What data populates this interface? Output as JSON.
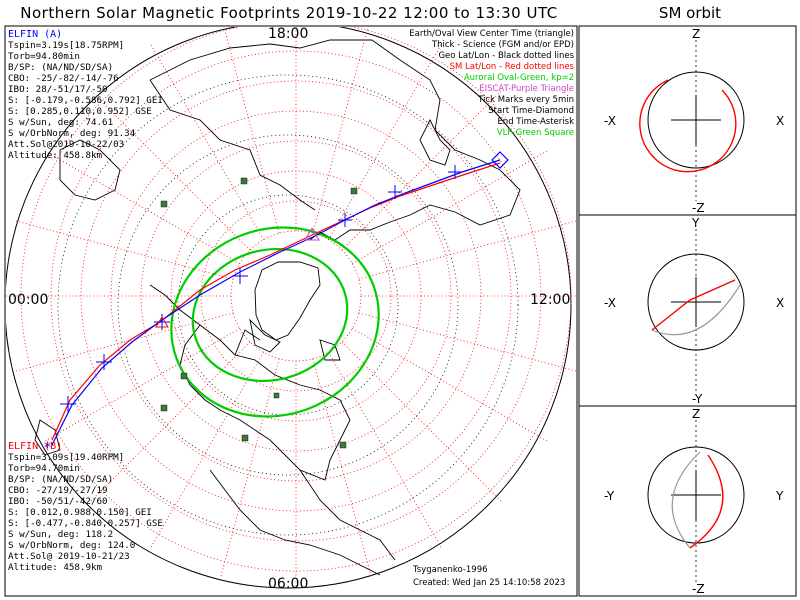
{
  "title": "Northern Solar Magnetic Footprints 2019-10-22 12:00 to 13:30 UTC",
  "sm_orbit_title": "SM orbit",
  "hour_labels": {
    "top": "18:00",
    "left": "00:00",
    "right": "12:00",
    "bottom": "06:00"
  },
  "elfin_a": {
    "name": "ELFIN (A)",
    "color": "#0000ff",
    "lines": [
      "Tspin=3.19s[18.75RPM]",
      "Torb=94.80min",
      "B/SP: (NA/ND/SD/SA)",
      "CBO: -25/-82/-14/-76",
      "IBO: 28/-51/17/-50",
      "S: [-0.179,-0.586,0.792] GEI",
      "S: [0.285,0.110,0.952] GSE",
      "S w/Sun, deg: 74.61",
      "S w/OrbNorm, deg: 91.34",
      "Att.Sol@2019-10-22/03",
      "Altitude: 458.8km"
    ]
  },
  "elfin_b": {
    "name": "ELFIN (B)",
    "color": "#ff0000",
    "lines": [
      "Tspin=3.09s[19.40RPM]",
      "Torb=94.70min",
      "B/SP: (NA/ND/SD/SA)",
      "CBO: -27/19/-27/19",
      "IBO: -50/51/-42/60",
      "S: [0.012,0.988,0.150] GEI",
      "S: [-0.477,-0.840,0.257] GSE",
      "S w/Sun, deg: 118.2",
      "S w/OrbNorm, deg: 124.0",
      "Att.Sol@ 2019-10-21/23",
      "Altitude: 458.9km"
    ]
  },
  "legend": [
    {
      "text": "Earth/Oval View Center Time (triangle)",
      "color": "#000000"
    },
    {
      "text": "Thick - Science (FGM and/or EPD)",
      "color": "#000000"
    },
    {
      "text": "Geo Lat/Lon - Black dotted lines",
      "color": "#000000"
    },
    {
      "text": "SM Lat/Lon - Red dotted lines",
      "color": "#ff0000"
    },
    {
      "text": "Auroral Oval-Green, kp=2",
      "color": "#00cc00"
    },
    {
      "text": "EISCAT-Purple Triangle",
      "color": "#cc44cc"
    },
    {
      "text": "Tick Marks every 5min",
      "color": "#000000"
    },
    {
      "text": "Start Time-Diamond",
      "color": "#000000"
    },
    {
      "text": "End Time-Asterisk",
      "color": "#000000"
    },
    {
      "text": "VLF-Green Square",
      "color": "#00cc00"
    }
  ],
  "credit": "Tsyganenko-1996",
  "created": "Created: Wed Jan 25 14:10:58 2023",
  "sm_panels": [
    {
      "top": "Z",
      "bottom": "-Z",
      "left": "-X",
      "right": "X"
    },
    {
      "top": "Y",
      "bottom": "-Y",
      "left": "-X",
      "right": "X"
    },
    {
      "top": "Z",
      "bottom": "-Z",
      "left": "-Y",
      "right": "Y"
    }
  ],
  "colors": {
    "elfin_a": "#0000ff",
    "elfin_b": "#ff0000",
    "auroral_oval": "#00cc00",
    "sm_grid": "#ff0000",
    "vlf_square": "#3a7a3a",
    "sm_orbit_gray": "#999999"
  }
}
